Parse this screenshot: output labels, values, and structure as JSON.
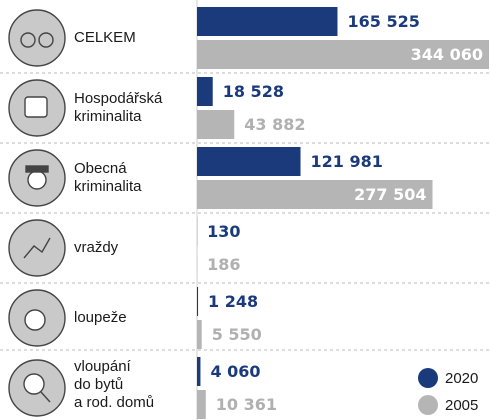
{
  "chart_data": {
    "type": "bar",
    "orientation": "horizontal",
    "categories": [
      "CELKEM",
      "Hospodářská\nkriminalita",
      "Obecná\nkriminalita",
      "vraždy",
      "loupeže",
      "vloupání\ndo bytů\na rod. domů"
    ],
    "series": [
      {
        "name": "2020",
        "color": "#1b3a7c",
        "values": [
          165525,
          18528,
          121981,
          130,
          1248,
          4060
        ],
        "value_labels": [
          "165 525",
          "18 528",
          "121 981",
          "130",
          "1 248",
          "4 060"
        ]
      },
      {
        "name": "2005",
        "color": "#b5b5b5",
        "values": [
          344060,
          43882,
          277504,
          186,
          5550,
          10361
        ],
        "value_labels": [
          "344 060",
          "43 882",
          "277 504",
          "186",
          "5 550",
          "10 361"
        ]
      }
    ],
    "legend": "bottom-right"
  }
}
